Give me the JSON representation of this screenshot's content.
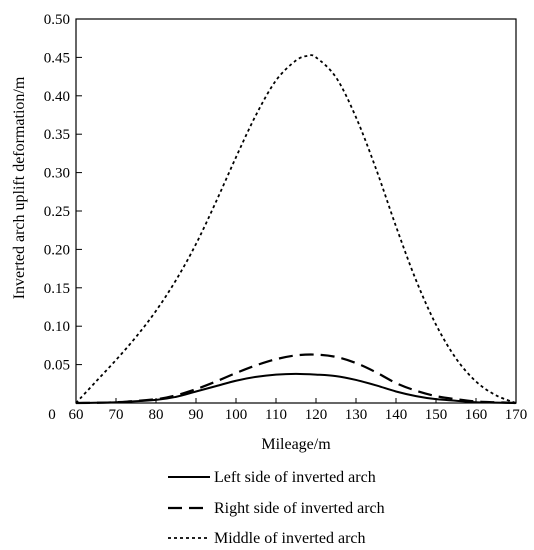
{
  "chart_data": {
    "type": "line",
    "xlabel": "Mileage/m",
    "ylabel": "Inverted arch uplift deformation/m",
    "xlim": [
      60,
      170
    ],
    "ylim": [
      0,
      0.5
    ],
    "origin_label": "0",
    "xticks": [
      "60",
      "70",
      "80",
      "90",
      "100",
      "110",
      "120",
      "130",
      "140",
      "150",
      "160",
      "170"
    ],
    "yticks": [
      "0.05",
      "0.10",
      "0.15",
      "0.20",
      "0.25",
      "0.30",
      "0.35",
      "0.40",
      "0.45",
      "0.50"
    ],
    "grid": false,
    "legend_position": "bottom",
    "series": [
      {
        "name": "Left side of inverted arch",
        "style": "solid",
        "x": [
          60,
          70,
          80,
          85,
          90,
          95,
          100,
          105,
          110,
          115,
          120,
          125,
          130,
          135,
          140,
          145,
          150,
          155,
          160,
          165,
          170
        ],
        "y": [
          0.0,
          0.001,
          0.004,
          0.008,
          0.015,
          0.022,
          0.029,
          0.034,
          0.037,
          0.038,
          0.037,
          0.035,
          0.03,
          0.023,
          0.015,
          0.009,
          0.005,
          0.003,
          0.001,
          0.0005,
          0.0
        ]
      },
      {
        "name": "Right side of inverted arch",
        "style": "dashed",
        "x": [
          60,
          70,
          80,
          85,
          90,
          95,
          100,
          105,
          110,
          115,
          120,
          125,
          130,
          135,
          140,
          145,
          150,
          155,
          160,
          165,
          170
        ],
        "y": [
          0.0,
          0.001,
          0.005,
          0.01,
          0.018,
          0.028,
          0.039,
          0.049,
          0.057,
          0.062,
          0.063,
          0.06,
          0.052,
          0.04,
          0.026,
          0.016,
          0.009,
          0.005,
          0.002,
          0.001,
          0.0
        ]
      },
      {
        "name": "Middle of inverted arch",
        "style": "dotted",
        "x": [
          60,
          65,
          70,
          75,
          80,
          85,
          90,
          95,
          100,
          105,
          110,
          115,
          118,
          120,
          125,
          130,
          135,
          140,
          145,
          150,
          155,
          160,
          165,
          170
        ],
        "y": [
          0.0,
          0.028,
          0.056,
          0.086,
          0.12,
          0.16,
          0.207,
          0.262,
          0.32,
          0.375,
          0.42,
          0.446,
          0.452,
          0.45,
          0.424,
          0.372,
          0.305,
          0.23,
          0.16,
          0.102,
          0.058,
          0.028,
          0.01,
          0.0
        ]
      }
    ]
  }
}
